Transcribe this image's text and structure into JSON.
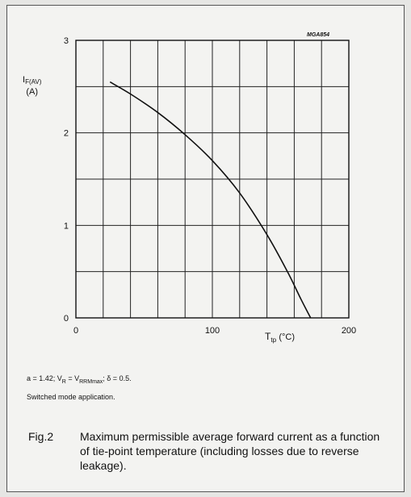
{
  "figure": {
    "code": "MGA854",
    "note_lines": [
      "a = 1.42; V₂ = Vₓₓₘₐₓ; δ = 0.5.",
      "Switched mode application."
    ],
    "note_line1_parts": {
      "a": "a = 1.42; V",
      "r": "R",
      "eq": " = V",
      "rrm": "RRMmax",
      "rest": "; δ = 0.5."
    },
    "note_line2": "Switched mode application.",
    "caption_label": "Fig.2",
    "caption_text": "Maximum permissible average forward current as a function of tie-point temperature (including losses due to reverse leakage)."
  },
  "chart_data": {
    "type": "line",
    "title": "",
    "ylabel_main": "I",
    "ylabel_sub": "F(AV)",
    "ylabel_unit": "(A)",
    "xlabel_main": "T",
    "xlabel_sub": "tp",
    "xlabel_unit": "(°C)",
    "xlim": [
      0,
      200
    ],
    "ylim": [
      0,
      3
    ],
    "xticks": [
      0,
      100,
      200
    ],
    "yticks": [
      0,
      1,
      2,
      3
    ],
    "grid": true,
    "series": [
      {
        "x": [
          25,
          40,
          60,
          80,
          100,
          120,
          140,
          155,
          165,
          172
        ],
        "y": [
          2.55,
          2.42,
          2.22,
          1.98,
          1.7,
          1.35,
          0.9,
          0.5,
          0.2,
          0.0
        ]
      }
    ]
  }
}
